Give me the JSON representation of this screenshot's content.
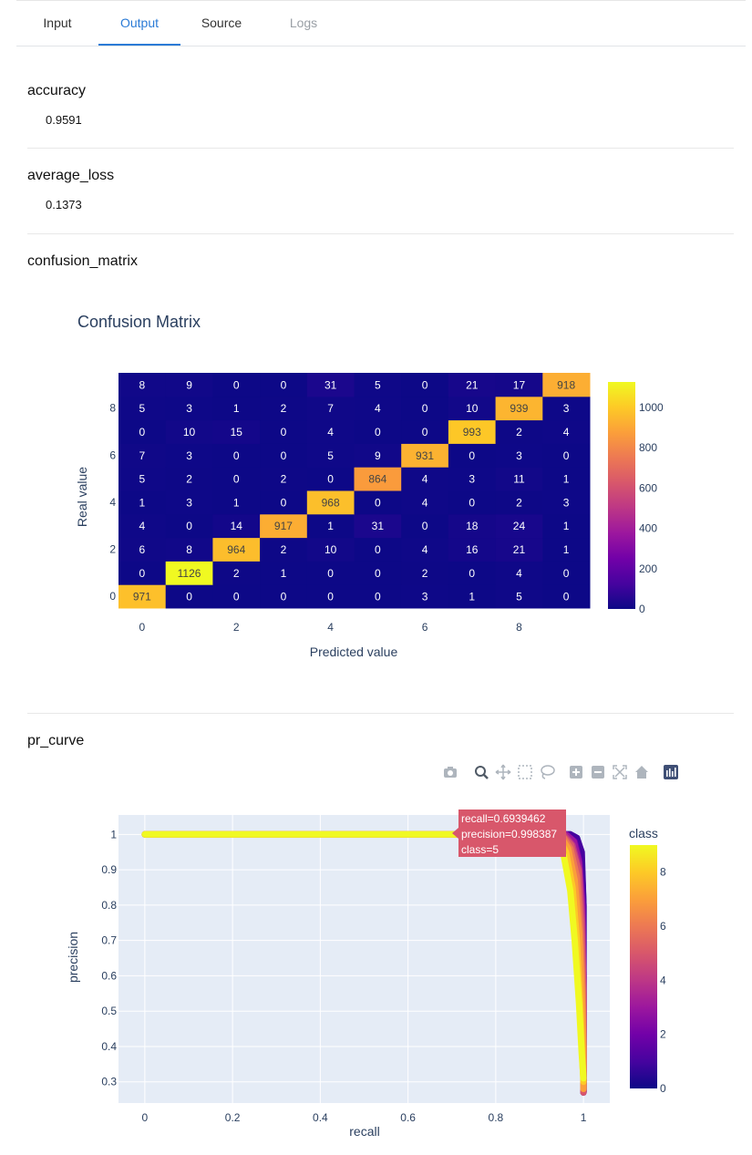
{
  "tabs": [
    {
      "label": "Input",
      "state": "normal"
    },
    {
      "label": "Output",
      "state": "active"
    },
    {
      "label": "Source",
      "state": "normal"
    },
    {
      "label": "Logs",
      "state": "disabled"
    }
  ],
  "sections": {
    "accuracy": {
      "title": "accuracy",
      "value": "0.9591"
    },
    "average_loss": {
      "title": "average_loss",
      "value": "0.1373"
    },
    "confusion_matrix": {
      "title": "confusion_matrix"
    },
    "pr_curve": {
      "title": "pr_curve"
    }
  },
  "modebar_icons": [
    "camera-icon",
    "zoom-icon",
    "pan-icon",
    "box-select-icon",
    "lasso-select-icon",
    "zoom-in-icon",
    "zoom-out-icon",
    "autoscale-icon",
    "reset-axes-icon",
    "plotly-logo-icon"
  ],
  "chart_data": [
    {
      "type": "heatmap",
      "title": "Confusion Matrix",
      "xlabel": "Predicted value",
      "ylabel": "Real value",
      "x_ticks": [
        "0",
        "2",
        "4",
        "6",
        "8"
      ],
      "y_ticks": [
        "0",
        "2",
        "4",
        "6",
        "8"
      ],
      "colorbar_ticks": [
        "0",
        "200",
        "400",
        "600",
        "800",
        "1000"
      ],
      "zmax": 1126,
      "colorscale": [
        "#0d0887",
        "#46039f",
        "#7201a8",
        "#9c179e",
        "#bd3786",
        "#d8576b",
        "#ed7953",
        "#fb9f3a",
        "#fdca26",
        "#f0f921"
      ],
      "rows": [
        [
          971,
          0,
          0,
          0,
          0,
          0,
          3,
          1,
          5,
          0
        ],
        [
          0,
          1126,
          2,
          1,
          0,
          0,
          2,
          0,
          4,
          0
        ],
        [
          6,
          8,
          964,
          2,
          10,
          0,
          4,
          16,
          21,
          1
        ],
        [
          4,
          0,
          14,
          917,
          1,
          31,
          0,
          18,
          24,
          1
        ],
        [
          1,
          3,
          1,
          0,
          968,
          0,
          4,
          0,
          2,
          3
        ],
        [
          5,
          2,
          0,
          2,
          0,
          864,
          4,
          3,
          11,
          1
        ],
        [
          7,
          3,
          0,
          0,
          5,
          9,
          931,
          0,
          3,
          0
        ],
        [
          0,
          10,
          15,
          0,
          4,
          0,
          0,
          993,
          2,
          4
        ],
        [
          5,
          3,
          1,
          2,
          7,
          4,
          0,
          10,
          939,
          3
        ],
        [
          8,
          9,
          0,
          0,
          31,
          5,
          0,
          21,
          17,
          918
        ]
      ]
    },
    {
      "type": "scatter",
      "xlabel": "recall",
      "ylabel": "precision",
      "x_ticks": [
        "0",
        "0.2",
        "0.4",
        "0.6",
        "0.8",
        "1"
      ],
      "y_ticks": [
        "0.3",
        "0.4",
        "0.5",
        "0.6",
        "0.7",
        "0.8",
        "0.9",
        "1"
      ],
      "xlim": [
        -0.06,
        1.06
      ],
      "ylim": [
        0.24,
        1.055
      ],
      "colorbar_title": "class",
      "colorbar_ticks": [
        "0",
        "2",
        "4",
        "6",
        "8"
      ],
      "tooltip": {
        "line1": "recall=0.6939462",
        "line2": "precision=0.998387",
        "line3": "class=5",
        "x": 0.6939462,
        "y": 0.998387,
        "class": 5
      },
      "series": [
        {
          "class": 0,
          "points": [
            [
              0,
              1
            ],
            [
              0.97,
              1
            ],
            [
              0.985,
              0.99
            ],
            [
              0.995,
              0.95
            ],
            [
              1.0,
              0.8
            ],
            [
              1.0,
              0.6
            ],
            [
              1.0,
              0.4
            ],
            [
              1.0,
              0.27
            ]
          ]
        },
        {
          "class": 1,
          "points": [
            [
              0,
              1
            ],
            [
              0.97,
              1
            ],
            [
              0.985,
              0.99
            ],
            [
              0.996,
              0.95
            ],
            [
              1.0,
              0.8
            ],
            [
              1.0,
              0.6
            ],
            [
              1.0,
              0.4
            ],
            [
              1.0,
              0.27
            ]
          ]
        },
        {
          "class": 2,
          "points": [
            [
              0,
              1
            ],
            [
              0.96,
              1
            ],
            [
              0.98,
              0.98
            ],
            [
              0.99,
              0.93
            ],
            [
              0.998,
              0.8
            ],
            [
              1.0,
              0.6
            ],
            [
              1.0,
              0.4
            ],
            [
              1.0,
              0.27
            ]
          ]
        },
        {
          "class": 3,
          "points": [
            [
              0,
              1
            ],
            [
              0.96,
              1
            ],
            [
              0.978,
              0.98
            ],
            [
              0.99,
              0.92
            ],
            [
              0.997,
              0.8
            ],
            [
              1.0,
              0.6
            ],
            [
              1.0,
              0.4
            ],
            [
              1.0,
              0.27
            ]
          ]
        },
        {
          "class": 4,
          "points": [
            [
              0,
              1
            ],
            [
              0.955,
              1
            ],
            [
              0.975,
              0.97
            ],
            [
              0.99,
              0.9
            ],
            [
              0.997,
              0.75
            ],
            [
              1.0,
              0.55
            ],
            [
              1.0,
              0.4
            ],
            [
              1.0,
              0.27
            ]
          ]
        },
        {
          "class": 5,
          "points": [
            [
              0,
              1
            ],
            [
              0.95,
              1
            ],
            [
              0.972,
              0.97
            ],
            [
              0.988,
              0.9
            ],
            [
              0.995,
              0.75
            ],
            [
              1.0,
              0.55
            ],
            [
              1.0,
              0.4
            ],
            [
              1.0,
              0.27
            ]
          ]
        },
        {
          "class": 6,
          "points": [
            [
              0,
              1
            ],
            [
              0.95,
              1
            ],
            [
              0.97,
              0.96
            ],
            [
              0.985,
              0.88
            ],
            [
              0.993,
              0.72
            ],
            [
              0.998,
              0.55
            ],
            [
              1.0,
              0.4
            ],
            [
              1.0,
              0.28
            ]
          ]
        },
        {
          "class": 7,
          "points": [
            [
              0,
              1
            ],
            [
              0.945,
              1
            ],
            [
              0.965,
              0.96
            ],
            [
              0.98,
              0.87
            ],
            [
              0.99,
              0.72
            ],
            [
              0.996,
              0.55
            ],
            [
              1.0,
              0.4
            ],
            [
              1.0,
              0.28
            ]
          ]
        },
        {
          "class": 8,
          "points": [
            [
              0,
              1
            ],
            [
              0.94,
              1
            ],
            [
              0.96,
              0.95
            ],
            [
              0.975,
              0.85
            ],
            [
              0.985,
              0.7
            ],
            [
              0.993,
              0.5
            ],
            [
              0.998,
              0.35
            ],
            [
              1.0,
              0.3
            ]
          ]
        },
        {
          "class": 9,
          "points": [
            [
              0,
              1
            ],
            [
              0.93,
              1
            ],
            [
              0.955,
              0.94
            ],
            [
              0.97,
              0.84
            ],
            [
              0.98,
              0.7
            ],
            [
              0.99,
              0.52
            ],
            [
              0.996,
              0.38
            ],
            [
              1.0,
              0.31
            ]
          ]
        }
      ]
    }
  ]
}
